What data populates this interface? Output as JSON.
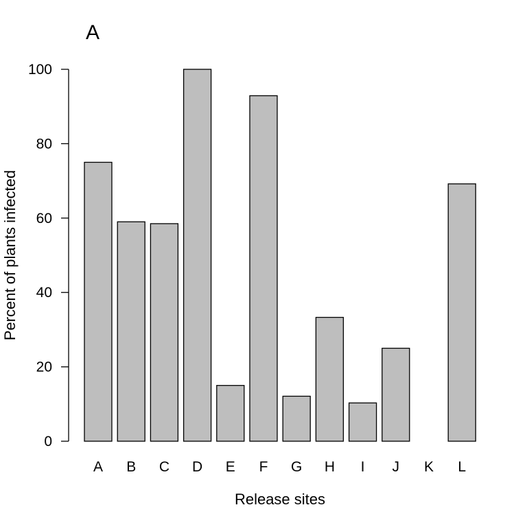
{
  "panel_label": "A",
  "chart_data": {
    "type": "bar",
    "title": "",
    "xlabel": "Release sites",
    "ylabel": "Percent of plants infected",
    "categories": [
      "A",
      "B",
      "C",
      "D",
      "E",
      "F",
      "G",
      "H",
      "I",
      "J",
      "K",
      "L"
    ],
    "values": [
      75,
      59,
      58.5,
      100,
      15,
      92.9,
      12.1,
      33.3,
      10.3,
      25,
      0,
      69.2
    ],
    "ylim": [
      0,
      100
    ],
    "yticks": [
      0,
      20,
      40,
      60,
      80,
      100
    ],
    "grid": false,
    "legend": "none",
    "bar_color": "#bebebe",
    "edge_color": "#000000"
  }
}
